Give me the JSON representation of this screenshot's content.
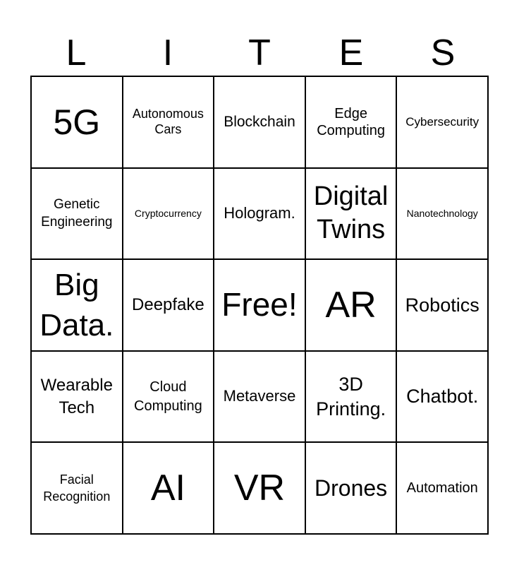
{
  "header": [
    "L",
    "I",
    "T",
    "E",
    "S"
  ],
  "cells": [
    "5G",
    "Autonomous Cars",
    "Blockchain",
    "Edge Computing",
    "Cybersecurity",
    "Genetic Engineering",
    "Cryptocurrency",
    "Hologram.",
    "Digital Twins",
    "Nanotechnology",
    "Big Data.",
    "Deepfake",
    "Free!",
    "AR",
    "Robotics",
    "Wearable Tech",
    "Cloud Computing",
    "Metaverse",
    "3D Printing.",
    "Chatbot.",
    "Facial Recognition",
    "AI",
    "VR",
    "Drones",
    "Automation"
  ]
}
